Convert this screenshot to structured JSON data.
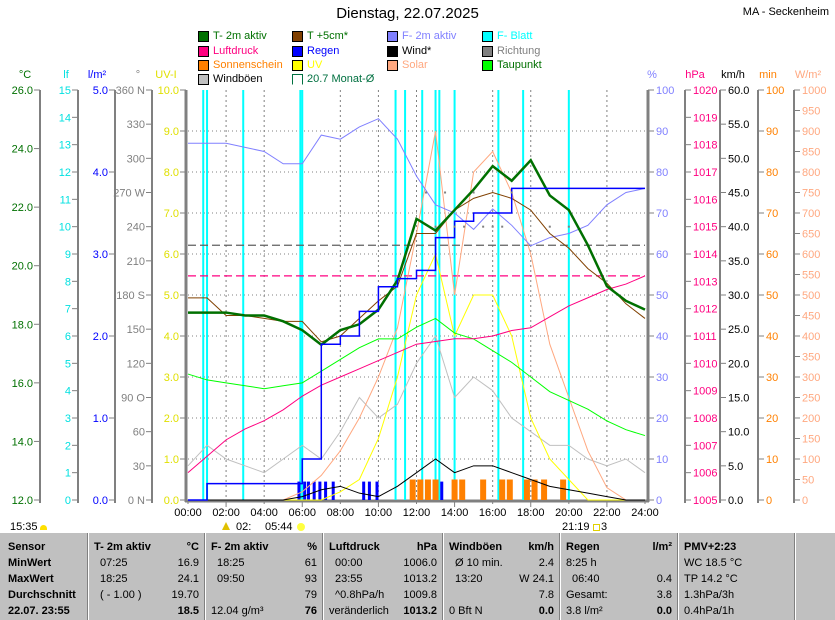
{
  "header": {
    "title": "Dienstag, 22.07.2025",
    "station": "MA - Seckenheim"
  },
  "legend": [
    {
      "label": "T- 2m aktiv",
      "color": "#007000",
      "text_color": "#007000"
    },
    {
      "label": "T +5cm*",
      "color": "#804000",
      "text_color": "#007000"
    },
    {
      "label": "F- 2m aktiv",
      "color": "#8080ff",
      "text_color": "#8080ff"
    },
    {
      "label": "F- Blatt",
      "color": "#00ffff",
      "text_color": "#00ffff"
    },
    {
      "label": "Luftdruck",
      "color": "#ff0080",
      "text_color": "#ff0080"
    },
    {
      "label": "Regen",
      "color": "#0000ff",
      "text_color": "#0000ff"
    },
    {
      "label": "Wind*",
      "color": "#000000",
      "text_color": "#000000"
    },
    {
      "label": "Richtung",
      "color": "#808080",
      "text_color": "#808080"
    },
    {
      "label": "Sonnenschein",
      "color": "#ff8000",
      "text_color": "#ff8000"
    },
    {
      "label": "UV",
      "color": "#ffff00",
      "text_color": "#ffff00"
    },
    {
      "label": "Solar",
      "color": "#ffa880",
      "text_color": "#ffa880"
    },
    {
      "label": "Taupunkt",
      "color": "#00ff00",
      "text_color": "#007000"
    },
    {
      "label": "Windböen",
      "color": "#c0c0c0",
      "text_color": "#000000"
    },
    {
      "label": "20.7 Monat-Ø",
      "color": "#007040",
      "text_color": "#007040",
      "outline": true
    }
  ],
  "chart_data": {
    "type": "line",
    "title": "Dienstag, 22.07.2025",
    "x_ticks": [
      "00:00",
      "02:00",
      "04:00",
      "06:00",
      "08:00",
      "10:00",
      "12:00",
      "14:00",
      "16:00",
      "18:00",
      "20:00",
      "22:00",
      "24:00"
    ],
    "xlim_hours": [
      0,
      24
    ],
    "grid": true,
    "axes_left": [
      {
        "unit": "°C",
        "color": "#007000",
        "min": 12,
        "max": 26,
        "labels": [
          "26.0",
          "24.0",
          "22.0",
          "20.0",
          "18.0",
          "16.0",
          "14.0",
          "12.0"
        ]
      },
      {
        "unit": "lf",
        "color": "#00e0e0",
        "min": 0,
        "max": 15,
        "labels": [
          "15",
          "14",
          "13",
          "12",
          "11",
          "10",
          "9",
          "8",
          "7",
          "6",
          "5",
          "4",
          "3",
          "2",
          "1",
          "0"
        ]
      },
      {
        "unit": "l/m²",
        "color": "#0000ff",
        "min": 0,
        "max": 5,
        "labels": [
          "5.0",
          "4.0",
          "3.0",
          "2.0",
          "1.0",
          "0.0"
        ]
      },
      {
        "unit": "°",
        "color": "#808080",
        "min": 0,
        "max": 360,
        "labels": [
          "360 N",
          "330",
          "300",
          "270 W",
          "240",
          "210",
          "180 S",
          "150",
          "120",
          "90 O",
          "60",
          "30",
          "0 N"
        ]
      },
      {
        "unit": "UV-I",
        "color": "#e0e000",
        "min": 0,
        "max": 10,
        "labels": [
          "10.0",
          "9.0",
          "8.0",
          "7.0",
          "6.0",
          "5.0",
          "4.0",
          "3.0",
          "2.0",
          "1.0",
          "0.0"
        ]
      }
    ],
    "axes_right": [
      {
        "unit": "%",
        "color": "#8080ff",
        "min": 0,
        "max": 100,
        "labels": [
          "100",
          "90",
          "80",
          "70",
          "60",
          "50",
          "40",
          "30",
          "20",
          "10",
          "0"
        ]
      },
      {
        "unit": "hPa",
        "color": "#ff0080",
        "min": 1005,
        "max": 1020,
        "labels": [
          "1020",
          "1019",
          "1018",
          "1017",
          "1016",
          "1015",
          "1014",
          "1013",
          "1012",
          "1011",
          "1010",
          "1009",
          "1008",
          "1007",
          "1006",
          "1005"
        ]
      },
      {
        "unit": "km/h",
        "color": "#000000",
        "min": 0,
        "max": 60,
        "labels": [
          "60.0",
          "55.0",
          "50.0",
          "45.0",
          "40.0",
          "35.0",
          "30.0",
          "25.0",
          "20.0",
          "15.0",
          "10.0",
          "5.0",
          "0.0"
        ]
      },
      {
        "unit": "min",
        "color": "#ff8000",
        "min": 0,
        "max": 100,
        "labels": [
          "100",
          "90",
          "80",
          "70",
          "60",
          "50",
          "40",
          "30",
          "20",
          "10",
          "0"
        ]
      },
      {
        "unit": "W/m²",
        "color": "#ffa880",
        "min": 0,
        "max": 1000,
        "labels": [
          "1000",
          "950",
          "900",
          "850",
          "800",
          "750",
          "700",
          "650",
          "600",
          "550",
          "500",
          "450",
          "400",
          "350",
          "300",
          "250",
          "200",
          "150",
          "100",
          "50",
          "0"
        ]
      }
    ],
    "x_hours": [
      0,
      1,
      2,
      3,
      4,
      5,
      6,
      7,
      8,
      9,
      10,
      11,
      12,
      13,
      14,
      15,
      16,
      17,
      18,
      19,
      20,
      21,
      22,
      23,
      24
    ],
    "series": [
      {
        "name": "Windböen",
        "axis": "km/h",
        "color": "#c0c0c0",
        "values": [
          5,
          8,
          6,
          5,
          4,
          6,
          8,
          6,
          10,
          15,
          12,
          14,
          20,
          24,
          15,
          18,
          16,
          12,
          10,
          8,
          8,
          6,
          5,
          6,
          4
        ]
      },
      {
        "name": "Solar",
        "axis": "W/m²",
        "color": "#ffa880",
        "values": [
          0,
          0,
          0,
          0,
          0,
          0,
          20,
          60,
          120,
          200,
          300,
          420,
          650,
          900,
          500,
          800,
          850,
          750,
          600,
          380,
          250,
          120,
          30,
          0,
          0
        ]
      },
      {
        "name": "UV",
        "axis": "UV-I",
        "color": "#ffff00",
        "values": [
          0,
          0,
          0,
          0,
          0,
          0,
          0,
          0,
          0.2,
          0.5,
          1.5,
          3,
          5,
          6,
          4,
          5,
          5,
          4,
          2,
          1,
          0.5,
          0,
          0,
          0,
          0
        ]
      },
      {
        "name": "Wind*",
        "axis": "km/h",
        "color": "#000000",
        "values": [
          0,
          0,
          0,
          0,
          0,
          0,
          0.5,
          1.5,
          2,
          1,
          0.5,
          2,
          4,
          6,
          4,
          5,
          5,
          4,
          3,
          2,
          1.5,
          1,
          0.5,
          0,
          0
        ]
      },
      {
        "name": "Taupunkt",
        "axis": "°C",
        "color": "#00ff00",
        "values": [
          16.3,
          16.1,
          16.0,
          15.9,
          15.8,
          15.9,
          16.0,
          16.4,
          16.8,
          17.2,
          17.5,
          17.5,
          17.9,
          18.2,
          17.7,
          17.5,
          17.1,
          16.7,
          16.2,
          15.7,
          15.4,
          15.1,
          14.7,
          14.4,
          14.2
        ]
      },
      {
        "name": "Luftdruck",
        "axis": "hPa",
        "color": "#ff0080",
        "values": [
          1006.0,
          1006.6,
          1007.2,
          1007.6,
          1007.9,
          1008.3,
          1008.8,
          1009.2,
          1009.5,
          1009.8,
          1010.1,
          1010.4,
          1010.7,
          1010.8,
          1010.9,
          1010.9,
          1011.0,
          1011.2,
          1011.3,
          1011.7,
          1012.1,
          1012.4,
          1012.7,
          1012.9,
          1013.2
        ]
      },
      {
        "name": "F- 2m aktiv",
        "axis": "%",
        "color": "#8080ff",
        "values": [
          87,
          87,
          87,
          86,
          85,
          82,
          82,
          89,
          88,
          91,
          93,
          88,
          79,
          72,
          70,
          66,
          71,
          67,
          62,
          64,
          65,
          67,
          72,
          75,
          76
        ]
      },
      {
        "name": "T +5cm*",
        "axis": "°C",
        "color": "#804000",
        "values": [
          18.9,
          18.9,
          18.3,
          18.3,
          18.2,
          18.1,
          18.1,
          17.4,
          17.6,
          18.2,
          18.8,
          19.3,
          21.1,
          21.1,
          21.9,
          22.3,
          22.5,
          22.3,
          21.9,
          21.1,
          20.6,
          19.9,
          19.4,
          18.7,
          18.2
        ]
      },
      {
        "name": "T- 2m aktiv",
        "axis": "°C",
        "color": "#007000",
        "values": [
          18.4,
          18.4,
          18.4,
          18.3,
          18.3,
          18.1,
          17.8,
          17.3,
          17.8,
          18.0,
          18.5,
          19.5,
          21.6,
          21.2,
          21.9,
          22.6,
          23.4,
          22.9,
          23.6,
          22.4,
          21.9,
          20.7,
          19.3,
          18.8,
          18.5
        ]
      },
      {
        "name": "Regen",
        "axis": "l/m²",
        "color": "#0000ff",
        "step": true,
        "values": [
          0,
          0.2,
          0.2,
          0.2,
          0.2,
          0.2,
          0.5,
          1.9,
          2.0,
          2.3,
          2.6,
          2.7,
          2.8,
          3.2,
          3.4,
          3.5,
          3.5,
          3.8,
          3.8,
          3.8,
          3.8,
          3.8,
          3.8,
          3.8,
          3.8
        ]
      }
    ],
    "f_blatt_spikes": {
      "axis": "lf",
      "color": "#00ffff",
      "value": 15,
      "hours": [
        0.8,
        1.0,
        2.9,
        5.9,
        6.0,
        10.9,
        11.4,
        12.3,
        13.0,
        13.2,
        14.0,
        16.3,
        17.6,
        20.0
      ]
    },
    "regen_bars": {
      "axis": "l/m²",
      "color": "#0000ff",
      "value": 0.2,
      "hours": [
        5.8,
        6.1,
        6.3,
        6.6,
        6.9,
        7.2,
        7.6,
        9.2,
        9.5,
        9.9,
        13.3
      ]
    },
    "sonnenschein_bars": {
      "axis": "min",
      "color": "#ff8000",
      "value": 5,
      "hours": [
        11.8,
        12.2,
        12.6,
        13.0,
        14.0,
        14.4,
        15.5,
        16.5,
        16.9,
        17.8,
        18.2,
        18.7,
        19.7
      ]
    },
    "richtung_points": {
      "axis": "°",
      "color": "#808080",
      "hours": [
        12.5,
        13.0,
        13.5,
        14.0,
        14.5,
        15.0,
        15.5,
        16.0,
        16.5,
        17.0,
        19.0,
        20.0
      ],
      "values": [
        270,
        240,
        270,
        240,
        240,
        270,
        240,
        240,
        240,
        270,
        240,
        240
      ]
    },
    "reference_lines": [
      {
        "label": "20.7 Monat-Ø",
        "axis": "°C",
        "value": 20.7,
        "color": "#606060"
      },
      {
        "axis": "hPa",
        "value": 1013.2,
        "color": "#ff0080"
      }
    ],
    "sun": {
      "left": "15:35",
      "sunrise_prefix": "02:",
      "sunrise": "05:44",
      "sunset": "21:19",
      "sunset_suffix": "3"
    }
  },
  "table": {
    "rows_labels": [
      "Sensor",
      "MinWert",
      "MaxWert",
      "Durchschnitt",
      "22.07. 23:55"
    ],
    "columns": [
      {
        "header": "T- 2m aktiv",
        "unit": "°C",
        "left": [
          "07:25",
          "18:25",
          "( - 1.00 )",
          ""
        ],
        "right": [
          "16.9",
          "24.1",
          "19.70",
          "18.5"
        ]
      },
      {
        "header": "F- 2m aktiv",
        "unit": "%",
        "left": [
          "18:25",
          "09:50",
          "",
          "12.04 g/m³"
        ],
        "right": [
          "61",
          "93",
          "79",
          "76"
        ]
      },
      {
        "header": "Luftdruck",
        "unit": "hPa",
        "left": [
          "00:00",
          "23:55",
          "^0.8hPa/h",
          "veränderlich"
        ],
        "right": [
          "1006.0",
          "1013.2",
          "1009.8",
          "1013.2"
        ]
      },
      {
        "header": "Windböen",
        "unit": "km/h",
        "left": [
          "Ø 10 min.",
          "13:20",
          "",
          "0 Bft N"
        ],
        "right": [
          "2.4",
          "W 24.1",
          "7.8",
          "0.0"
        ]
      },
      {
        "header": "Regen",
        "unit": "l/m²",
        "left": [
          "8:25 h",
          "06:40",
          "Gesamt:",
          "3.8 l/m²"
        ],
        "right": [
          "",
          "0.4",
          "3.8",
          "0.0"
        ]
      },
      {
        "header": "PMV+2:23",
        "unit": "",
        "left": [
          "WC 18.5 °C",
          "TP 14.2 °C",
          "1.3hPa/3h",
          "0.4hPa/1h"
        ],
        "right": [
          "",
          "",
          "",
          ""
        ]
      }
    ]
  }
}
